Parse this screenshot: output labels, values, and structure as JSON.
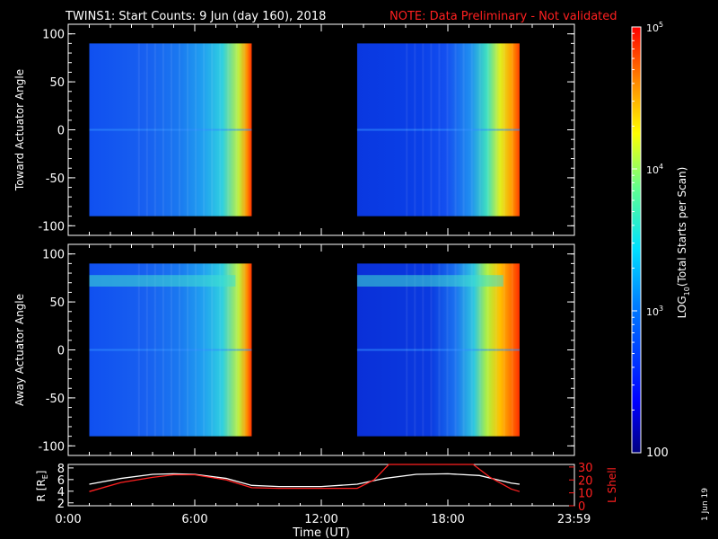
{
  "title": {
    "main": "TWINS1: Start Counts:  9 Jun (day 160), 2018",
    "note": "NOTE: Data Preliminary - Not validated"
  },
  "colors": {
    "background": "#000000",
    "axes": "#ffffff",
    "note": "#ff2020",
    "lshell": "#ff2020",
    "r_line": "#ffffff"
  },
  "colorbar": {
    "label_prefix": "LOG",
    "label_sub": "10",
    "label_rest": "(Total Starts per Scan)",
    "min_label": "100",
    "ticks": [
      {
        "value": 1000,
        "base": "10",
        "exp": "3"
      },
      {
        "value": 10000,
        "base": "10",
        "exp": "4"
      },
      {
        "value": 100000,
        "base": "10",
        "exp": "5"
      }
    ],
    "range": [
      100,
      100000
    ]
  },
  "footer_date": "1 Jun 19",
  "chart_data": [
    {
      "type": "heatmap",
      "ylabel": "Toward Actuator Angle",
      "ylim": [
        -110,
        110
      ],
      "yticks": [
        "100",
        "50",
        "0",
        "-50",
        "-100"
      ],
      "ytick_values": [
        100,
        50,
        0,
        -50,
        -100
      ],
      "xlim_hours": [
        0,
        24
      ],
      "data_blocks": [
        {
          "start_hour": 1.0,
          "end_hour": 8.7,
          "angle_range": [
            -90,
            90
          ]
        },
        {
          "start_hour": 13.7,
          "end_hour": 21.4,
          "angle_range": [
            -90,
            90
          ]
        }
      ],
      "color_scale": "log10 counts, 100 to 100000 (blue to red)"
    },
    {
      "type": "heatmap",
      "ylabel": "Away Actuator Angle",
      "ylim": [
        -110,
        110
      ],
      "yticks": [
        "100",
        "50",
        "0",
        "-50",
        "-100"
      ],
      "ytick_values": [
        100,
        50,
        0,
        -50,
        -100
      ],
      "xlim_hours": [
        0,
        24
      ],
      "data_blocks": [
        {
          "start_hour": 1.0,
          "end_hour": 8.7,
          "angle_range": [
            -90,
            90
          ]
        },
        {
          "start_hour": 13.7,
          "end_hour": 21.4,
          "angle_range": [
            -90,
            90
          ]
        }
      ],
      "color_scale": "log10 counts, 100 to 100000 (blue to red)"
    },
    {
      "type": "line",
      "xlabel": "Time (UT)",
      "ylabel_left": "R [R",
      "ylabel_left_sub": "E",
      "ylabel_left_end": "]",
      "ylabel_right": "L Shell",
      "xticks": [
        "0:00",
        "6:00",
        "12:00",
        "18:00",
        "23:59"
      ],
      "xtick_hours": [
        0,
        6,
        12,
        18,
        23.983
      ],
      "left_yticks": [
        "2",
        "4",
        "6",
        "8"
      ],
      "left_ytick_values": [
        2,
        4,
        6,
        8
      ],
      "left_ylim": [
        1.5,
        8.6
      ],
      "right_yticks": [
        "0",
        "10",
        "20",
        "30"
      ],
      "right_ytick_values": [
        0,
        10,
        20,
        30
      ],
      "right_ylim": [
        0,
        32
      ],
      "series": [
        {
          "name": "R",
          "axis": "left",
          "x": [
            1.0,
            2.5,
            4.0,
            5.0,
            6.0,
            7.5,
            8.7,
            10.0,
            12.0,
            13.7,
            15.0,
            16.5,
            18.0,
            19.5,
            21.0,
            21.4
          ],
          "y": [
            5.2,
            6.2,
            6.9,
            7.0,
            6.9,
            6.2,
            5.0,
            4.8,
            4.8,
            5.2,
            6.2,
            6.9,
            7.0,
            6.7,
            5.4,
            5.2
          ]
        },
        {
          "name": "L Shell",
          "axis": "right",
          "x": [
            1.0,
            2.5,
            4.0,
            5.0,
            6.0,
            7.5,
            8.7,
            10.0,
            12.0,
            13.7,
            14.5,
            15.2,
            19.2,
            20.0,
            21.0,
            21.4
          ],
          "y": [
            11,
            18,
            22,
            24,
            24,
            20,
            14,
            13.5,
            13.5,
            13.5,
            20,
            32,
            32,
            22,
            13,
            11
          ]
        }
      ]
    }
  ]
}
